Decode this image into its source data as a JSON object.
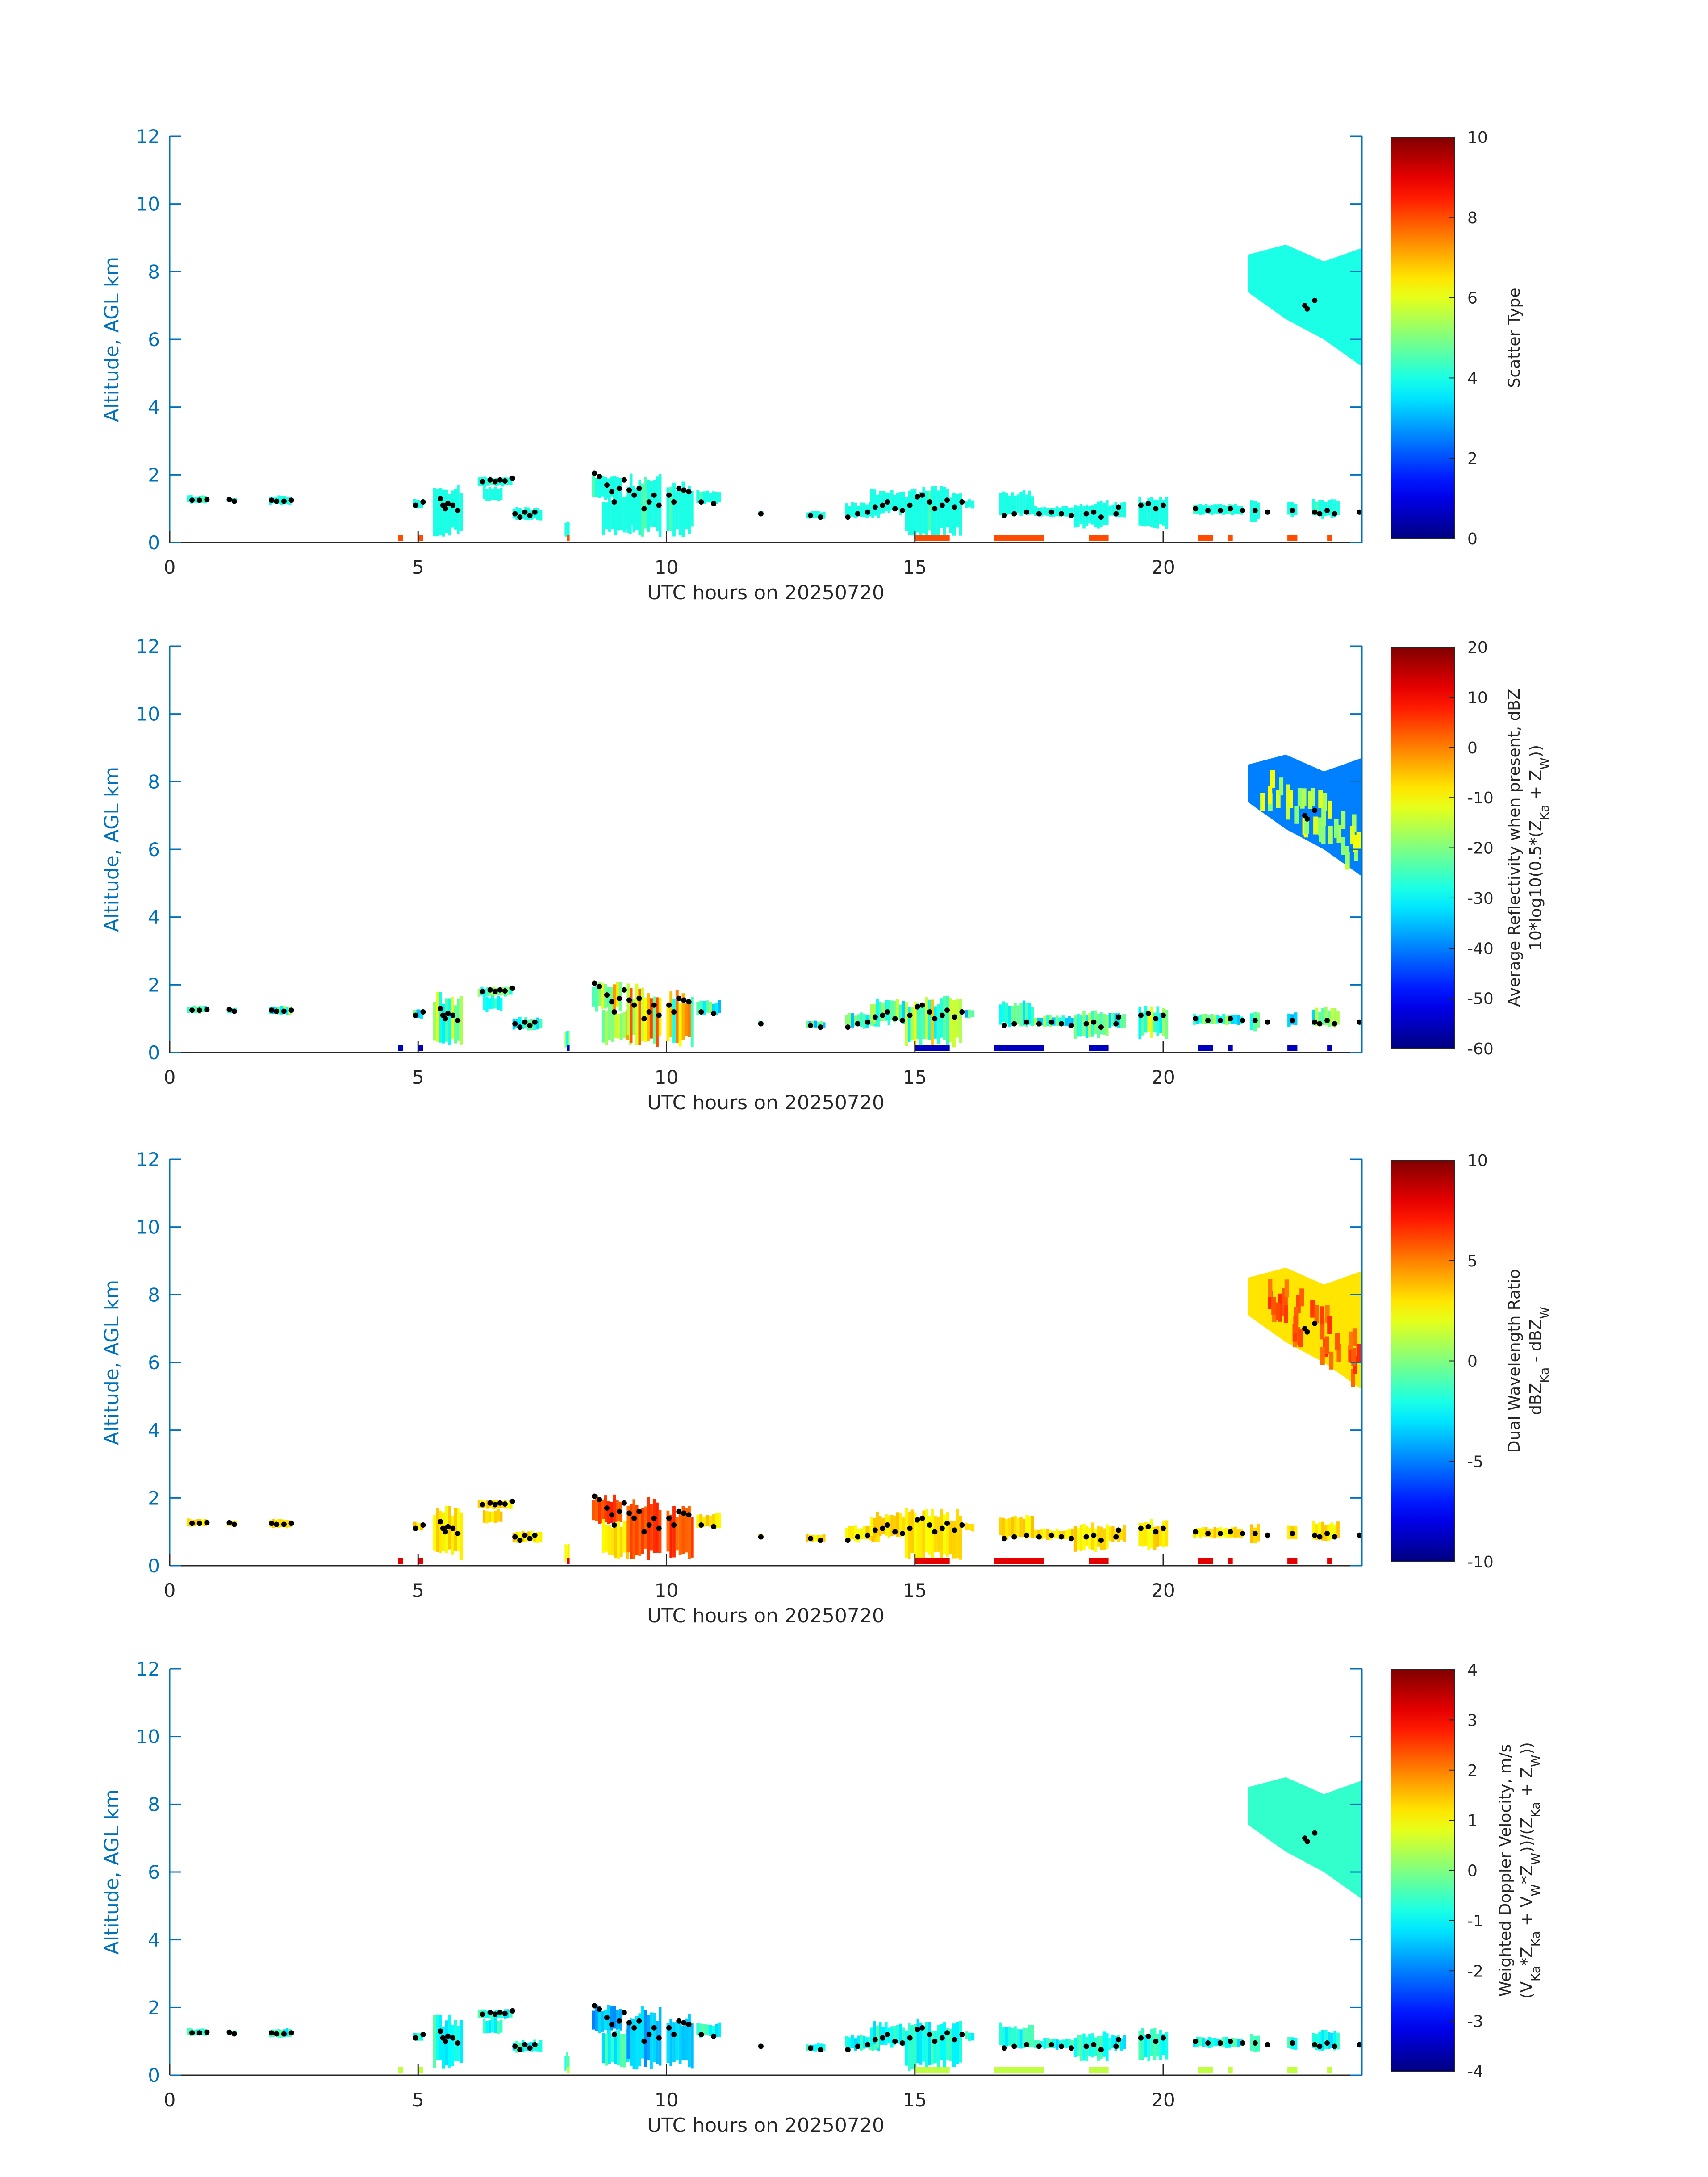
{
  "chart_data": [
    {
      "type": "heatmap",
      "xlabel": "UTC hours on 20250720",
      "ylabel": "Altitude, AGL km",
      "xlim": [
        0,
        24
      ],
      "ylim": [
        0,
        12
      ],
      "xticks": [
        "0",
        "5",
        "10",
        "15",
        "20"
      ],
      "yticks": [
        "0",
        "2",
        "4",
        "6",
        "8",
        "10",
        "12"
      ],
      "colorbar": {
        "label_lines": [
          "Scatter Type"
        ],
        "range": [
          0,
          10
        ],
        "ticks": [
          "0",
          "2",
          "4",
          "6",
          "8",
          "10"
        ]
      },
      "dominant_value": 4,
      "secondary_value": 8
    },
    {
      "type": "heatmap",
      "xlabel": "UTC hours on 20250720",
      "ylabel": "Altitude, AGL km",
      "xlim": [
        0,
        24
      ],
      "ylim": [
        0,
        12
      ],
      "xticks": [
        "0",
        "5",
        "10",
        "15",
        "20"
      ],
      "yticks": [
        "0",
        "2",
        "4",
        "6",
        "8",
        "10",
        "12"
      ],
      "colorbar": {
        "label_lines": [
          "Average Reflectivity when present, dBZ",
          "10*log10(0.5*(Z_Ka + Z_W))"
        ],
        "range": [
          -60,
          20
        ],
        "ticks": [
          "-60",
          "-50",
          "-40",
          "-30",
          "-20",
          "-10",
          "0",
          "10",
          "20"
        ]
      },
      "dominant_value": -45,
      "secondary_value": 0
    },
    {
      "type": "heatmap",
      "xlabel": "UTC hours on 20250720",
      "ylabel": "Altitude, AGL km",
      "xlim": [
        0,
        24
      ],
      "ylim": [
        0,
        12
      ],
      "xticks": [
        "0",
        "5",
        "10",
        "15",
        "20"
      ],
      "yticks": [
        "0",
        "2",
        "4",
        "6",
        "8",
        "10",
        "12"
      ],
      "colorbar": {
        "label_lines": [
          "Dual Wavelength Ratio",
          "dBZ_Ka - dBZ_W"
        ],
        "range": [
          -10,
          10
        ],
        "ticks": [
          "-10",
          "-5",
          "0",
          "5",
          "10"
        ]
      },
      "dominant_value": 3,
      "secondary_value": 7
    },
    {
      "type": "heatmap",
      "xlabel": "UTC hours on 20250720",
      "ylabel": "Altitude, AGL km",
      "xlim": [
        0,
        24
      ],
      "ylim": [
        0,
        12
      ],
      "xticks": [
        "0",
        "5",
        "10",
        "15",
        "20"
      ],
      "yticks": [
        "0",
        "2",
        "4",
        "6",
        "8",
        "10",
        "12"
      ],
      "colorbar": {
        "label_lines": [
          "Weighted Doppler Velocity, m/s",
          "(V_Ka*Z_Ka + V_W*Z_W))/(Z_Ka + Z_W))"
        ],
        "range": [
          -4,
          4
        ],
        "ticks": [
          "-4",
          "-3",
          "-2",
          "-1",
          "0",
          "1",
          "2",
          "3",
          "4"
        ]
      },
      "dominant_value": -1,
      "secondary_value": -2
    }
  ],
  "echo_regions": [
    {
      "t0": 0.35,
      "t1": 0.75,
      "z0": 1.15,
      "z1": 1.4,
      "v": 0.55
    },
    {
      "t0": 1.15,
      "t1": 1.35,
      "z0": 1.15,
      "z1": 1.35,
      "v": 0.55
    },
    {
      "t0": 2.0,
      "t1": 2.45,
      "z0": 1.1,
      "z1": 1.4,
      "v": 0.55
    },
    {
      "t0": 4.9,
      "t1": 5.1,
      "z0": 1.0,
      "z1": 1.3,
      "v": 0.5
    },
    {
      "t0": 5.3,
      "t1": 5.9,
      "z0": 0.15,
      "z1": 1.8,
      "v": 0.7
    },
    {
      "t0": 6.2,
      "t1": 6.9,
      "z0": 1.65,
      "z1": 1.95,
      "v": 0.6
    },
    {
      "t0": 6.3,
      "t1": 6.7,
      "z0": 1.2,
      "z1": 1.7,
      "v": 0.5
    },
    {
      "t0": 6.9,
      "t1": 7.5,
      "z0": 0.65,
      "z1": 1.05,
      "v": 0.5
    },
    {
      "t0": 7.95,
      "t1": 8.05,
      "z0": 0.1,
      "z1": 0.7,
      "v": 0.6
    },
    {
      "t0": 8.5,
      "t1": 9.1,
      "z0": 1.2,
      "z1": 2.1,
      "v": 0.85
    },
    {
      "t0": 8.7,
      "t1": 9.3,
      "z0": 0.2,
      "z1": 1.4,
      "v": 0.8
    },
    {
      "t0": 9.2,
      "t1": 9.9,
      "z0": 0.15,
      "z1": 2.05,
      "v": 0.95
    },
    {
      "t0": 10.0,
      "t1": 10.55,
      "z0": 0.15,
      "z1": 1.85,
      "v": 0.9
    },
    {
      "t0": 10.6,
      "t1": 11.1,
      "z0": 1.1,
      "z1": 1.55,
      "v": 0.55
    },
    {
      "t0": 11.85,
      "t1": 11.95,
      "z0": 0.8,
      "z1": 0.95,
      "v": 0.5
    },
    {
      "t0": 12.8,
      "t1": 13.2,
      "z0": 0.7,
      "z1": 0.95,
      "v": 0.5
    },
    {
      "t0": 13.6,
      "t1": 14.3,
      "z0": 0.7,
      "z1": 1.2,
      "v": 0.55
    },
    {
      "t0": 14.1,
      "t1": 14.8,
      "z0": 0.8,
      "z1": 1.6,
      "v": 0.6
    },
    {
      "t0": 14.8,
      "t1": 15.5,
      "z0": 0.1,
      "z1": 1.7,
      "v": 0.75
    },
    {
      "t0": 15.5,
      "t1": 15.95,
      "z0": 0.15,
      "z1": 1.7,
      "v": 0.7
    },
    {
      "t0": 16.0,
      "t1": 16.2,
      "z0": 1.0,
      "z1": 1.3,
      "v": 0.5
    },
    {
      "t0": 16.7,
      "t1": 17.4,
      "z0": 0.75,
      "z1": 1.55,
      "v": 0.55
    },
    {
      "t0": 17.4,
      "t1": 18.2,
      "z0": 0.75,
      "z1": 1.1,
      "v": 0.55
    },
    {
      "t0": 18.2,
      "t1": 18.9,
      "z0": 0.4,
      "z1": 1.3,
      "v": 0.6
    },
    {
      "t0": 18.9,
      "t1": 19.25,
      "z0": 0.7,
      "z1": 1.2,
      "v": 0.5
    },
    {
      "t0": 19.5,
      "t1": 20.1,
      "z0": 0.4,
      "z1": 1.4,
      "v": 0.65
    },
    {
      "t0": 20.6,
      "t1": 21.6,
      "z0": 0.8,
      "z1": 1.15,
      "v": 0.55
    },
    {
      "t0": 21.75,
      "t1": 21.95,
      "z0": 0.6,
      "z1": 1.3,
      "v": 0.5
    },
    {
      "t0": 22.5,
      "t1": 22.7,
      "z0": 0.75,
      "z1": 1.2,
      "v": 0.5
    },
    {
      "t0": 23.0,
      "t1": 23.55,
      "z0": 0.7,
      "z1": 1.35,
      "v": 0.6
    },
    {
      "t0": 23.95,
      "t1": 24.0,
      "z0": 0.8,
      "z1": 0.95,
      "v": 0.5
    }
  ],
  "cirrus_region": {
    "t0": 21.7,
    "t1": 24.0,
    "top": [
      8.5,
      8.8,
      8.3,
      8.7
    ],
    "base": [
      7.4,
      6.6,
      6.0,
      5.2
    ]
  },
  "surface_specks": [
    [
      4.6,
      4.7
    ],
    [
      5.0,
      5.1
    ],
    [
      8.0,
      8.05
    ],
    [
      15.0,
      15.7
    ],
    [
      16.6,
      17.6
    ],
    [
      18.5,
      18.9
    ],
    [
      20.7,
      21.0
    ],
    [
      21.3,
      21.4
    ],
    [
      22.5,
      22.7
    ],
    [
      23.3,
      23.4
    ]
  ],
  "cloud_base_points": [
    [
      0.45,
      1.25
    ],
    [
      0.6,
      1.25
    ],
    [
      0.75,
      1.27
    ],
    [
      1.2,
      1.27
    ],
    [
      1.3,
      1.22
    ],
    [
      2.05,
      1.25
    ],
    [
      2.15,
      1.22
    ],
    [
      2.3,
      1.22
    ],
    [
      2.45,
      1.25
    ],
    [
      4.95,
      1.1
    ],
    [
      5.1,
      1.2
    ],
    [
      5.45,
      1.3
    ],
    [
      5.5,
      1.1
    ],
    [
      5.55,
      1.0
    ],
    [
      5.6,
      1.15
    ],
    [
      5.7,
      1.1
    ],
    [
      5.8,
      0.95
    ],
    [
      6.3,
      1.8
    ],
    [
      6.45,
      1.85
    ],
    [
      6.55,
      1.8
    ],
    [
      6.65,
      1.85
    ],
    [
      6.75,
      1.82
    ],
    [
      6.9,
      1.9
    ],
    [
      6.95,
      0.85
    ],
    [
      7.05,
      0.75
    ],
    [
      7.15,
      0.9
    ],
    [
      7.25,
      0.8
    ],
    [
      7.35,
      0.9
    ],
    [
      8.55,
      2.05
    ],
    [
      8.65,
      1.95
    ],
    [
      8.8,
      1.7
    ],
    [
      8.9,
      1.5
    ],
    [
      8.95,
      1.2
    ],
    [
      9.05,
      1.6
    ],
    [
      9.15,
      1.85
    ],
    [
      9.25,
      1.55
    ],
    [
      9.35,
      1.4
    ],
    [
      9.45,
      1.6
    ],
    [
      9.55,
      1.0
    ],
    [
      9.65,
      1.2
    ],
    [
      9.75,
      1.4
    ],
    [
      9.85,
      1.1
    ],
    [
      10.05,
      1.4
    ],
    [
      10.15,
      1.2
    ],
    [
      10.25,
      1.6
    ],
    [
      10.35,
      1.55
    ],
    [
      10.45,
      1.5
    ],
    [
      10.7,
      1.2
    ],
    [
      10.95,
      1.15
    ],
    [
      11.9,
      0.85
    ],
    [
      12.9,
      0.8
    ],
    [
      13.1,
      0.75
    ],
    [
      13.65,
      0.75
    ],
    [
      13.85,
      0.85
    ],
    [
      14.05,
      0.9
    ],
    [
      14.2,
      1.05
    ],
    [
      14.35,
      1.1
    ],
    [
      14.45,
      1.2
    ],
    [
      14.6,
      1.0
    ],
    [
      14.75,
      0.95
    ],
    [
      14.9,
      1.1
    ],
    [
      15.05,
      1.35
    ],
    [
      15.15,
      1.4
    ],
    [
      15.3,
      1.2
    ],
    [
      15.4,
      1.0
    ],
    [
      15.55,
      1.1
    ],
    [
      15.65,
      1.25
    ],
    [
      15.8,
      1.05
    ],
    [
      15.95,
      1.2
    ],
    [
      16.8,
      0.8
    ],
    [
      17.0,
      0.85
    ],
    [
      17.25,
      0.9
    ],
    [
      17.5,
      0.85
    ],
    [
      17.75,
      0.9
    ],
    [
      17.95,
      0.85
    ],
    [
      18.15,
      0.8
    ],
    [
      18.45,
      0.85
    ],
    [
      18.6,
      0.9
    ],
    [
      18.75,
      0.75
    ],
    [
      19.05,
      0.85
    ],
    [
      19.1,
      1.05
    ],
    [
      19.55,
      1.1
    ],
    [
      19.7,
      1.15
    ],
    [
      19.85,
      1.0
    ],
    [
      20.0,
      1.1
    ],
    [
      20.65,
      1.0
    ],
    [
      20.9,
      0.95
    ],
    [
      21.15,
      0.95
    ],
    [
      21.35,
      1.0
    ],
    [
      21.6,
      0.95
    ],
    [
      21.85,
      0.95
    ],
    [
      22.1,
      0.9
    ],
    [
      22.6,
      0.95
    ],
    [
      23.05,
      0.9
    ],
    [
      23.15,
      0.85
    ],
    [
      23.3,
      0.95
    ],
    [
      23.45,
      0.85
    ],
    [
      23.95,
      0.9
    ],
    [
      22.85,
      7.0
    ],
    [
      23.05,
      7.15
    ],
    [
      22.9,
      6.9
    ]
  ]
}
